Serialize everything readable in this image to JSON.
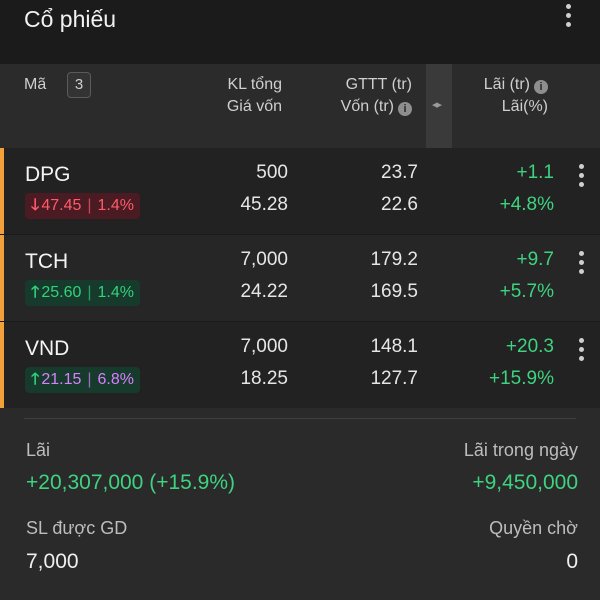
{
  "header": {
    "title": "Cổ phiếu"
  },
  "table_header": {
    "ma": "Mã",
    "count": "3",
    "kl_tong": "KL tổng",
    "gia_von": "Giá vốn",
    "gttt": "GTTT (tr)",
    "von": "Vốn (tr)",
    "lai": "Lãi (tr)",
    "lai_pct": "Lãi(%)",
    "info_icon": "info-icon",
    "splitter_icon": "resize-horizontal-icon"
  },
  "stocks": [
    {
      "symbol": "DPG",
      "price": "47.45",
      "change": "1.4%",
      "direction": "down",
      "kl_tong": "500",
      "gia_von": "45.28",
      "gttt": "23.7",
      "von": "22.6",
      "lai": "+1.1",
      "lai_pct": "+4.8%"
    },
    {
      "symbol": "TCH",
      "price": "25.60",
      "change": "1.4%",
      "direction": "up",
      "kl_tong": "7,000",
      "gia_von": "24.22",
      "gttt": "179.2",
      "von": "169.5",
      "lai": "+9.7",
      "lai_pct": "+5.7%"
    },
    {
      "symbol": "VND",
      "price": "21.15",
      "change": "6.8%",
      "direction": "up",
      "kl_tong": "7,000",
      "gia_von": "18.25",
      "gttt": "148.1",
      "von": "127.7",
      "lai": "+20.3",
      "lai_pct": "+15.9%"
    }
  ],
  "summary": {
    "lai_label": "Lãi",
    "lai_value": "+20,307,000 (+15.9%)",
    "lai_trong_ngay_label": "Lãi trong ngày",
    "lai_trong_ngay_value": "+9,450,000",
    "sl_label": "SL được GD",
    "sl_value": "7,000",
    "quyen_cho_label": "Quyền chờ",
    "quyen_cho_value": "0"
  },
  "colors": {
    "accent": "#f2a03a",
    "gain": "#3ed37f",
    "loss": "#ff5b6b",
    "ceiling": "#d980ff"
  }
}
